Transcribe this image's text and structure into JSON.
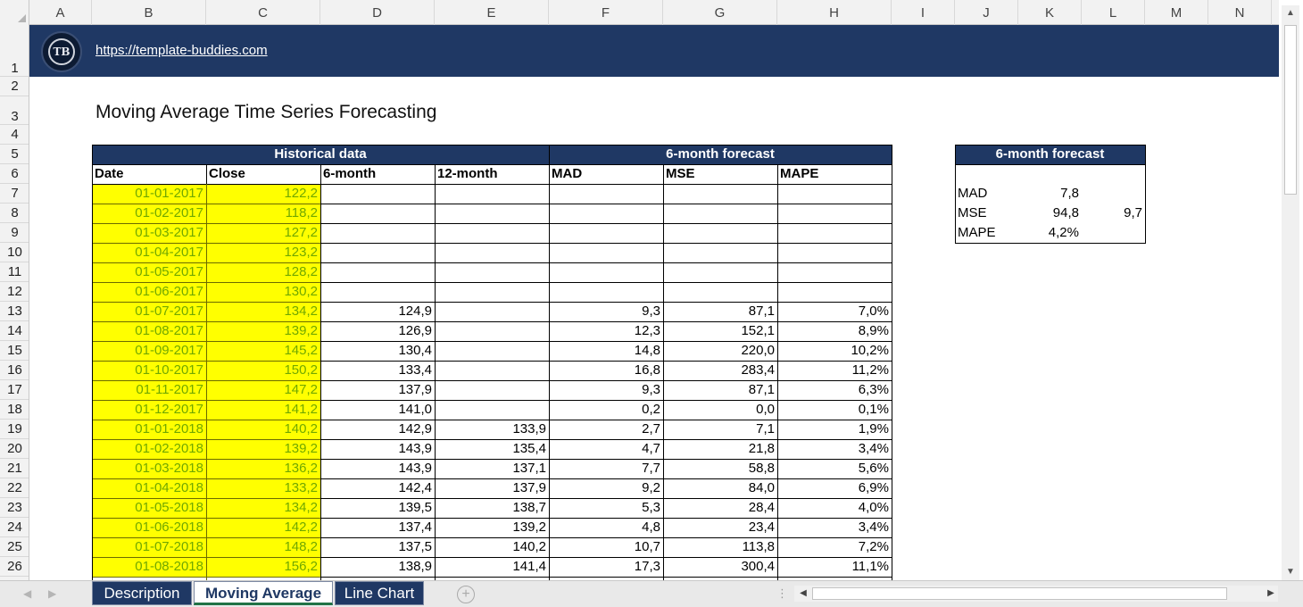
{
  "columns": [
    "A",
    "B",
    "C",
    "D",
    "E",
    "F",
    "G",
    "H",
    "I",
    "J",
    "K",
    "L",
    "M",
    "N"
  ],
  "rows": [
    "1",
    "2",
    "3",
    "4",
    "5",
    "6",
    "7",
    "8",
    "9",
    "10",
    "11",
    "12",
    "13",
    "14",
    "15",
    "16",
    "17",
    "18",
    "19",
    "20",
    "21",
    "22",
    "23",
    "24",
    "25",
    "26"
  ],
  "banner": {
    "logo_text": "TB",
    "link": "https://template-buddies.com"
  },
  "title": "Moving Average Time Series Forecasting",
  "table": {
    "group_historical": "Historical data",
    "group_forecast": "6-month forecast",
    "headers": [
      "Date",
      "Close",
      "6-month",
      "12-month",
      "MAD",
      "MSE",
      "MAPE"
    ],
    "rows": [
      [
        "01-01-2017",
        "122,2",
        "",
        "",
        "",
        "",
        ""
      ],
      [
        "01-02-2017",
        "118,2",
        "",
        "",
        "",
        "",
        ""
      ],
      [
        "01-03-2017",
        "127,2",
        "",
        "",
        "",
        "",
        ""
      ],
      [
        "01-04-2017",
        "123,2",
        "",
        "",
        "",
        "",
        ""
      ],
      [
        "01-05-2017",
        "128,2",
        "",
        "",
        "",
        "",
        ""
      ],
      [
        "01-06-2017",
        "130,2",
        "",
        "",
        "",
        "",
        ""
      ],
      [
        "01-07-2017",
        "134,2",
        "124,9",
        "",
        "9,3",
        "87,1",
        "7,0%"
      ],
      [
        "01-08-2017",
        "139,2",
        "126,9",
        "",
        "12,3",
        "152,1",
        "8,9%"
      ],
      [
        "01-09-2017",
        "145,2",
        "130,4",
        "",
        "14,8",
        "220,0",
        "10,2%"
      ],
      [
        "01-10-2017",
        "150,2",
        "133,4",
        "",
        "16,8",
        "283,4",
        "11,2%"
      ],
      [
        "01-11-2017",
        "147,2",
        "137,9",
        "",
        "9,3",
        "87,1",
        "6,3%"
      ],
      [
        "01-12-2017",
        "141,2",
        "141,0",
        "",
        "0,2",
        "0,0",
        "0,1%"
      ],
      [
        "01-01-2018",
        "140,2",
        "142,9",
        "133,9",
        "2,7",
        "7,1",
        "1,9%"
      ],
      [
        "01-02-2018",
        "139,2",
        "143,9",
        "135,4",
        "4,7",
        "21,8",
        "3,4%"
      ],
      [
        "01-03-2018",
        "136,2",
        "143,9",
        "137,1",
        "7,7",
        "58,8",
        "5,6%"
      ],
      [
        "01-04-2018",
        "133,2",
        "142,4",
        "137,9",
        "9,2",
        "84,0",
        "6,9%"
      ],
      [
        "01-05-2018",
        "134,2",
        "139,5",
        "138,7",
        "5,3",
        "28,4",
        "4,0%"
      ],
      [
        "01-06-2018",
        "142,2",
        "137,4",
        "139,2",
        "4,8",
        "23,4",
        "3,4%"
      ],
      [
        "01-07-2018",
        "148,2",
        "137,5",
        "140,2",
        "10,7",
        "113,8",
        "7,2%"
      ],
      [
        "01-08-2018",
        "156,2",
        "138,9",
        "141,4",
        "17,3",
        "300,4",
        "11,1%"
      ]
    ]
  },
  "summary": {
    "title": "6-month forecast",
    "rows": [
      {
        "label": "MAD",
        "value": "7,8",
        "extra": ""
      },
      {
        "label": "MSE",
        "value": "94,8",
        "extra": "9,7"
      },
      {
        "label": "MAPE",
        "value": "4,2%",
        "extra": ""
      }
    ]
  },
  "tabs": [
    "Description",
    "Moving Average",
    "Line Chart"
  ],
  "active_tab": "Moving Average",
  "colors": {
    "banner": "#1f3864",
    "highlight": "#ffff00",
    "highlight_text": "#70a800"
  }
}
